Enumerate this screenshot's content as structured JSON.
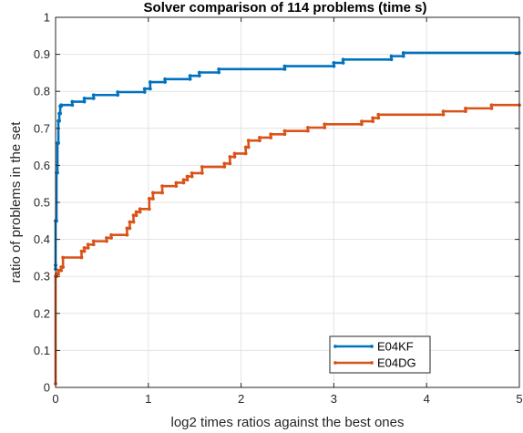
{
  "chart_data": {
    "type": "line",
    "title": "Solver comparison of 114 problems (time s)",
    "xlabel": "log2 times ratios against the best ones",
    "ylabel": "ratio of problems in the set",
    "xlim": [
      0,
      5
    ],
    "ylim": [
      0,
      1
    ],
    "xticks": [
      "0",
      "1",
      "2",
      "3",
      "4",
      "5"
    ],
    "yticks": [
      "0",
      "0.1",
      "0.2",
      "0.3",
      "0.4",
      "0.5",
      "0.6",
      "0.7",
      "0.8",
      "0.9",
      "1"
    ],
    "grid": true,
    "legend_position": "bottom-right",
    "series": [
      {
        "name": "E04KF",
        "color": "#0072BD",
        "x": [
          0,
          0,
          0,
          0,
          0.01,
          0.01,
          0.02,
          0.02,
          0.03,
          0.03,
          0.04,
          0.04,
          0.05,
          0.05,
          0.06,
          0.06,
          0.18,
          0.18,
          0.31,
          0.31,
          0.41,
          0.41,
          0.67,
          0.67,
          0.96,
          0.96,
          1.02,
          1.02,
          1.18,
          1.18,
          1.45,
          1.45,
          1.55,
          1.55,
          1.76,
          1.76,
          2.47,
          2.47,
          3.0,
          3.0,
          3.1,
          3.1,
          3.62,
          3.62,
          3.75,
          3.75,
          5.0
        ],
        "y": [
          0.32,
          0.33,
          0.33,
          0.45,
          0.45,
          0.58,
          0.58,
          0.66,
          0.66,
          0.72,
          0.72,
          0.74,
          0.74,
          0.76,
          0.76,
          0.763,
          0.763,
          0.772,
          0.772,
          0.781,
          0.781,
          0.79,
          0.79,
          0.798,
          0.798,
          0.807,
          0.807,
          0.825,
          0.825,
          0.833,
          0.833,
          0.842,
          0.842,
          0.851,
          0.851,
          0.86,
          0.86,
          0.868,
          0.868,
          0.877,
          0.877,
          0.886,
          0.886,
          0.895,
          0.895,
          0.904,
          0.904
        ]
      },
      {
        "name": "E04DG",
        "color": "#D95319",
        "x": [
          0,
          0,
          0.01,
          0.01,
          0.03,
          0.03,
          0.06,
          0.06,
          0.08,
          0.08,
          0.28,
          0.28,
          0.31,
          0.31,
          0.35,
          0.35,
          0.41,
          0.41,
          0.55,
          0.55,
          0.6,
          0.6,
          0.77,
          0.77,
          0.8,
          0.8,
          0.84,
          0.84,
          0.87,
          0.87,
          0.91,
          0.91,
          1.01,
          1.01,
          1.05,
          1.05,
          1.15,
          1.15,
          1.3,
          1.3,
          1.38,
          1.38,
          1.42,
          1.42,
          1.47,
          1.47,
          1.58,
          1.58,
          1.82,
          1.82,
          1.88,
          1.88,
          1.93,
          1.93,
          2.05,
          2.05,
          2.08,
          2.08,
          2.2,
          2.2,
          2.32,
          2.32,
          2.47,
          2.47,
          2.72,
          2.72,
          2.9,
          2.9,
          3.3,
          3.3,
          3.42,
          3.42,
          3.48,
          3.48,
          4.18,
          4.18,
          4.42,
          4.42,
          4.7,
          4.7,
          5.0
        ],
        "y": [
          0.01,
          0.3,
          0.3,
          0.307,
          0.307,
          0.316,
          0.316,
          0.325,
          0.325,
          0.351,
          0.351,
          0.368,
          0.368,
          0.377,
          0.377,
          0.386,
          0.386,
          0.395,
          0.395,
          0.404,
          0.404,
          0.412,
          0.412,
          0.43,
          0.43,
          0.447,
          0.447,
          0.465,
          0.465,
          0.474,
          0.474,
          0.482,
          0.482,
          0.51,
          0.51,
          0.526,
          0.526,
          0.544,
          0.544,
          0.553,
          0.553,
          0.561,
          0.561,
          0.57,
          0.57,
          0.579,
          0.579,
          0.596,
          0.596,
          0.605,
          0.605,
          0.623,
          0.623,
          0.632,
          0.632,
          0.649,
          0.649,
          0.667,
          0.667,
          0.675,
          0.675,
          0.684,
          0.684,
          0.693,
          0.693,
          0.702,
          0.702,
          0.711,
          0.711,
          0.719,
          0.719,
          0.728,
          0.728,
          0.737,
          0.737,
          0.746,
          0.746,
          0.754,
          0.754,
          0.763,
          0.763
        ]
      }
    ]
  }
}
